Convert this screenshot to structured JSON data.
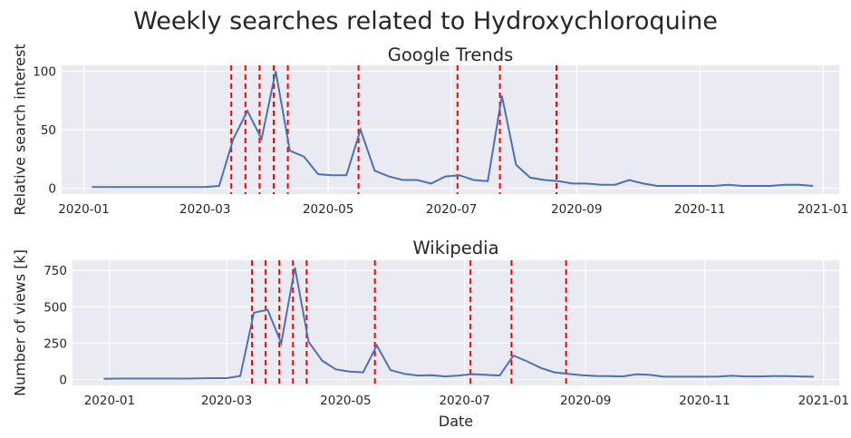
{
  "figure": {
    "title": "Weekly searches related to Hydroxychloroquine"
  },
  "colors": {
    "background": "#eaeaf2",
    "grid": "#ffffff",
    "line": "#4c72b0",
    "event_line": "#ff0000"
  },
  "events": [
    "2020-03-14",
    "2020-03-21",
    "2020-03-28",
    "2020-04-04",
    "2020-04-11",
    "2020-05-16",
    "2020-07-04",
    "2020-07-25",
    "2020-08-22"
  ],
  "chart_data": [
    {
      "type": "line",
      "title": "Google Trends",
      "xlabel": "",
      "ylabel": "Relative search interest",
      "xlim": [
        "2019-12-21",
        "2021-01-09"
      ],
      "ylim": [
        -5,
        105
      ],
      "x_ticks": [
        "2020-01",
        "2020-03",
        "2020-05",
        "2020-07",
        "2020-09",
        "2020-11",
        "2021-01"
      ],
      "y_ticks": [
        0,
        50,
        100
      ],
      "grid": true,
      "vlines": [
        "2020-03-14",
        "2020-03-21",
        "2020-03-28",
        "2020-04-04",
        "2020-04-11",
        "2020-05-16",
        "2020-07-04",
        "2020-07-25",
        "2020-08-22"
      ],
      "series": [
        {
          "x": [
            "2020-01-05",
            "2020-01-12",
            "2020-01-19",
            "2020-01-26",
            "2020-02-02",
            "2020-02-09",
            "2020-02-16",
            "2020-02-23",
            "2020-03-01",
            "2020-03-08",
            "2020-03-15",
            "2020-03-22",
            "2020-03-29",
            "2020-04-05",
            "2020-04-12",
            "2020-04-19",
            "2020-04-26",
            "2020-05-03",
            "2020-05-10",
            "2020-05-17",
            "2020-05-24",
            "2020-05-31",
            "2020-06-07",
            "2020-06-14",
            "2020-06-21",
            "2020-06-28",
            "2020-07-05",
            "2020-07-12",
            "2020-07-19",
            "2020-07-26",
            "2020-08-02",
            "2020-08-09",
            "2020-08-16",
            "2020-08-23",
            "2020-08-30",
            "2020-09-06",
            "2020-09-13",
            "2020-09-20",
            "2020-09-27",
            "2020-10-04",
            "2020-10-11",
            "2020-10-18",
            "2020-10-25",
            "2020-11-01",
            "2020-11-08",
            "2020-11-15",
            "2020-11-22",
            "2020-11-29",
            "2020-12-06",
            "2020-12-13",
            "2020-12-20",
            "2020-12-27"
          ],
          "values": [
            1,
            1,
            1,
            1,
            1,
            1,
            1,
            1,
            1,
            2,
            42,
            66,
            42,
            100,
            32,
            27,
            12,
            11,
            11,
            50,
            15,
            10,
            7,
            7,
            4,
            10,
            11,
            7,
            6,
            79,
            20,
            9,
            7,
            6,
            4,
            4,
            3,
            3,
            7,
            4,
            2,
            2,
            2,
            2,
            2,
            3,
            2,
            2,
            2,
            3,
            3,
            2
          ]
        }
      ]
    },
    {
      "type": "line",
      "title": "Wikipedia",
      "xlabel": "Date",
      "ylabel": "Number of views [k]",
      "xlim": [
        "2019-12-13",
        "2021-01-09"
      ],
      "ylim": [
        -40,
        820
      ],
      "x_ticks": [
        "2020-01",
        "2020-03",
        "2020-05",
        "2020-07",
        "2020-09",
        "2020-11",
        "2021-01"
      ],
      "y_ticks": [
        0,
        250,
        500,
        750
      ],
      "grid": true,
      "vlines": [
        "2020-03-14",
        "2020-03-21",
        "2020-03-28",
        "2020-04-04",
        "2020-04-11",
        "2020-05-16",
        "2020-07-04",
        "2020-07-25",
        "2020-08-22"
      ],
      "series": [
        {
          "x": [
            "2019-12-29",
            "2020-01-05",
            "2020-01-12",
            "2020-01-19",
            "2020-01-26",
            "2020-02-02",
            "2020-02-09",
            "2020-02-16",
            "2020-02-23",
            "2020-03-01",
            "2020-03-08",
            "2020-03-15",
            "2020-03-22",
            "2020-03-29",
            "2020-04-05",
            "2020-04-12",
            "2020-04-19",
            "2020-04-26",
            "2020-05-03",
            "2020-05-10",
            "2020-05-17",
            "2020-05-24",
            "2020-05-31",
            "2020-06-07",
            "2020-06-14",
            "2020-06-21",
            "2020-06-28",
            "2020-07-05",
            "2020-07-12",
            "2020-07-19",
            "2020-07-26",
            "2020-08-02",
            "2020-08-09",
            "2020-08-16",
            "2020-08-23",
            "2020-08-30",
            "2020-09-06",
            "2020-09-13",
            "2020-09-20",
            "2020-09-27",
            "2020-10-04",
            "2020-10-11",
            "2020-10-18",
            "2020-10-25",
            "2020-11-01",
            "2020-11-08",
            "2020-11-15",
            "2020-11-22",
            "2020-11-29",
            "2020-12-06",
            "2020-12-13",
            "2020-12-20",
            "2020-12-27"
          ],
          "values": [
            5,
            7,
            7,
            7,
            7,
            7,
            7,
            8,
            10,
            10,
            25,
            460,
            480,
            250,
            770,
            260,
            130,
            70,
            55,
            50,
            235,
            65,
            40,
            28,
            30,
            22,
            28,
            37,
            32,
            28,
            165,
            125,
            80,
            50,
            40,
            30,
            25,
            24,
            22,
            36,
            32,
            20,
            20,
            20,
            20,
            21,
            26,
            22,
            22,
            24,
            24,
            22,
            20
          ]
        }
      ]
    }
  ]
}
